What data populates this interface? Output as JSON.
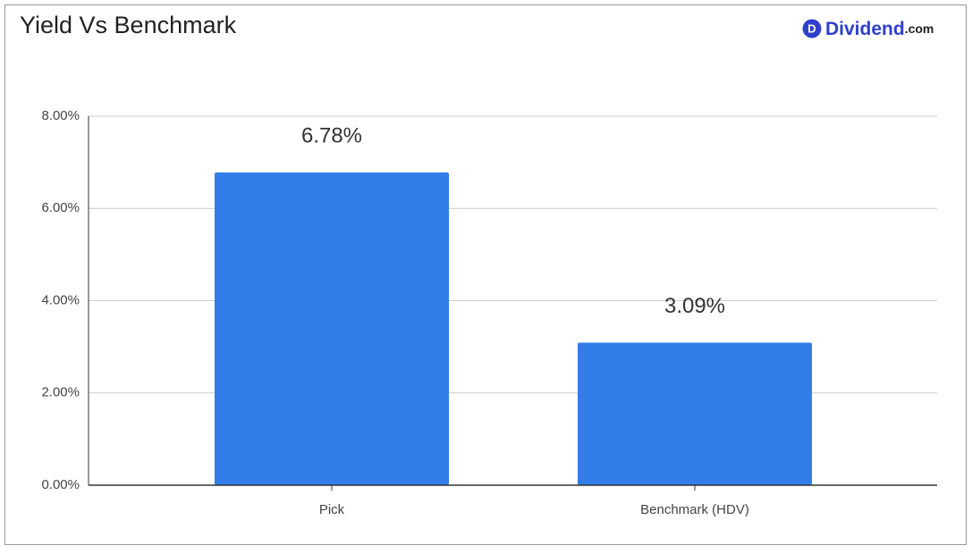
{
  "chart_data": {
    "type": "bar",
    "title": "Yield Vs Benchmark",
    "categories": [
      "Pick",
      "Benchmark (HDV)"
    ],
    "values": [
      6.78,
      3.09
    ],
    "value_labels": [
      "6.78%",
      "3.09%"
    ],
    "color": "#337de9",
    "ylim": [
      0,
      8
    ],
    "yticks": [
      {
        "value": 0,
        "label": "0.00%"
      },
      {
        "value": 2,
        "label": "2.00%"
      },
      {
        "value": 4,
        "label": "4.00%"
      },
      {
        "value": 6,
        "label": "6.00%"
      },
      {
        "value": 8,
        "label": "8.00%"
      }
    ],
    "grid": true
  },
  "logo": {
    "icon": "D",
    "name": "Dividend",
    "suffix": ".com"
  }
}
